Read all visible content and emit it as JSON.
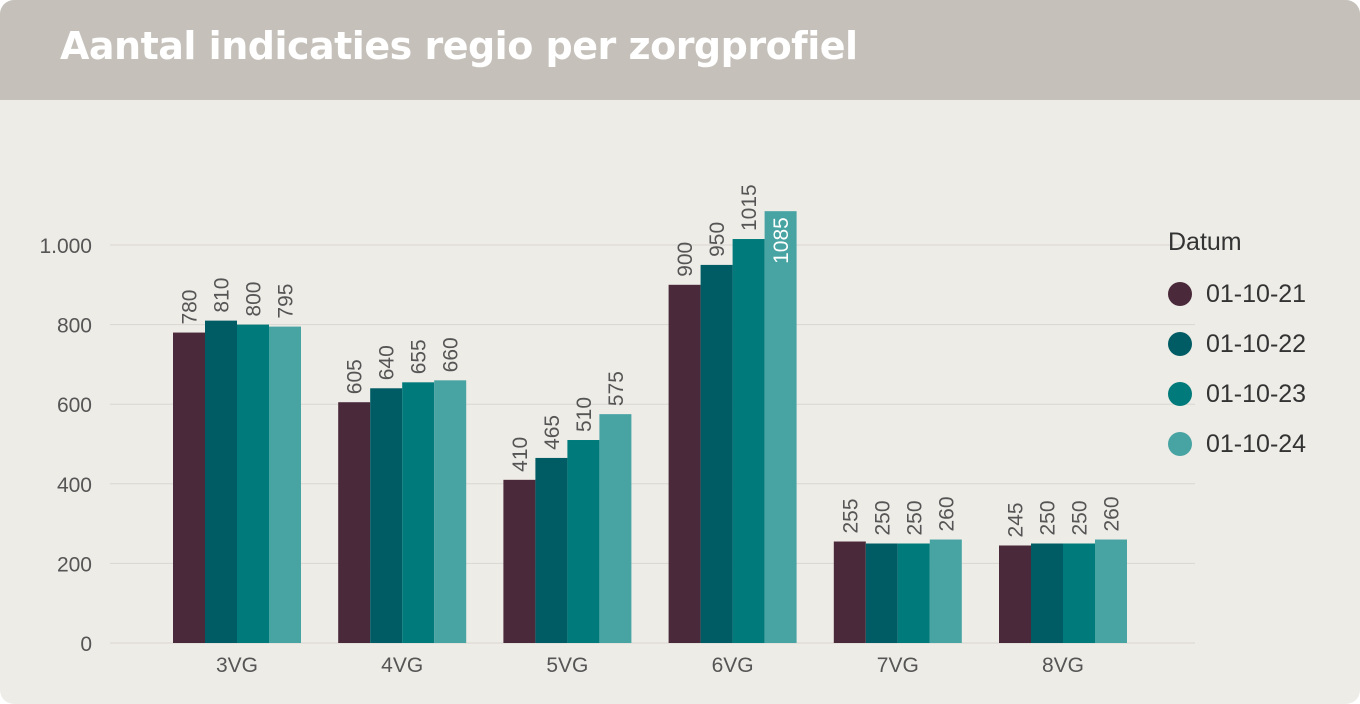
{
  "header": {
    "title": "Aantal indicaties regio per zorgprofiel"
  },
  "legend": {
    "title": "Datum"
  },
  "chart_data": {
    "type": "bar",
    "title": "Aantal indicaties regio per zorgprofiel",
    "xlabel": "",
    "ylabel": "",
    "categories": [
      "3VG",
      "4VG",
      "5VG",
      "6VG",
      "7VG",
      "8VG"
    ],
    "ylim": [
      0,
      1100
    ],
    "yticks": [
      0,
      200,
      400,
      600,
      800,
      1000
    ],
    "ytick_labels": [
      "0",
      "200",
      "400",
      "600",
      "800",
      "1.000"
    ],
    "grid": true,
    "legend_position": "right",
    "series": [
      {
        "name": "01-10-21",
        "color": "#4a2a3a",
        "values": [
          780,
          605,
          410,
          900,
          255,
          245
        ]
      },
      {
        "name": "01-10-22",
        "color": "#005c64",
        "values": [
          810,
          640,
          465,
          950,
          250,
          250
        ]
      },
      {
        "name": "01-10-23",
        "color": "#007a7a",
        "values": [
          800,
          655,
          510,
          1015,
          250,
          250
        ]
      },
      {
        "name": "01-10-24",
        "color": "#48a3a3",
        "values": [
          795,
          660,
          575,
          1085,
          260,
          260
        ]
      }
    ]
  }
}
